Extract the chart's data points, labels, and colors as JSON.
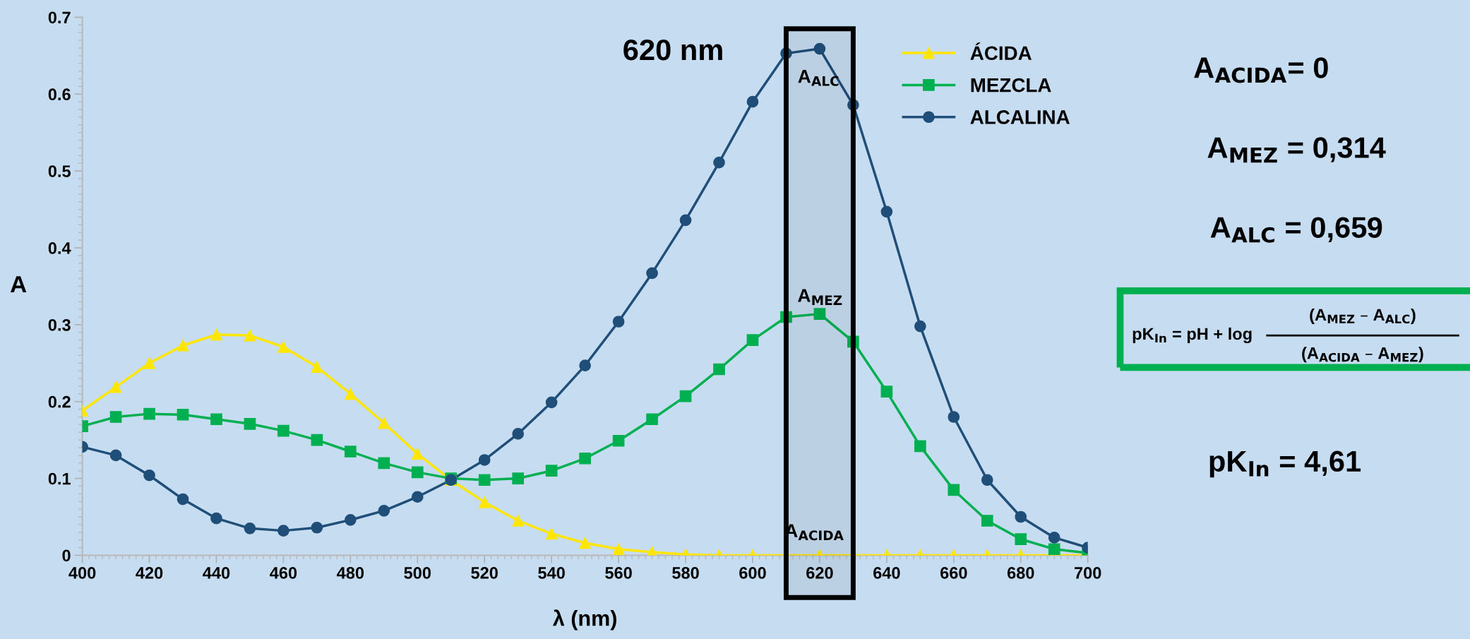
{
  "chart_data": {
    "type": "line",
    "xlabel": "λ (nm)",
    "ylabel": "A",
    "x": [
      400,
      410,
      420,
      430,
      440,
      450,
      460,
      470,
      480,
      490,
      500,
      510,
      520,
      530,
      540,
      550,
      560,
      570,
      580,
      590,
      600,
      610,
      620,
      630,
      640,
      650,
      660,
      670,
      680,
      690,
      700
    ],
    "series": [
      {
        "name": "ÁCIDA",
        "color": "#ffe600",
        "marker": "triangle",
        "values": [
          0.188,
          0.219,
          0.25,
          0.273,
          0.287,
          0.286,
          0.271,
          0.245,
          0.21,
          0.172,
          0.132,
          0.098,
          0.069,
          0.045,
          0.028,
          0.016,
          0.008,
          0.004,
          0.001,
          0,
          0,
          0,
          0,
          0,
          0,
          0,
          0,
          0,
          0,
          0,
          0
        ]
      },
      {
        "name": "MEZCLA",
        "color": "#00b050",
        "marker": "square",
        "values": [
          0.168,
          0.18,
          0.184,
          0.183,
          0.177,
          0.171,
          0.162,
          0.15,
          0.135,
          0.12,
          0.108,
          0.1,
          0.098,
          0.1,
          0.11,
          0.126,
          0.149,
          0.177,
          0.207,
          0.242,
          0.28,
          0.31,
          0.314,
          0.278,
          0.213,
          0.142,
          0.085,
          0.045,
          0.021,
          0.008,
          0.003
        ]
      },
      {
        "name": "ALCALINA",
        "color": "#1f4e79",
        "marker": "circle",
        "values": [
          0.141,
          0.13,
          0.104,
          0.073,
          0.048,
          0.035,
          0.032,
          0.036,
          0.046,
          0.058,
          0.076,
          0.098,
          0.124,
          0.158,
          0.199,
          0.247,
          0.304,
          0.367,
          0.436,
          0.511,
          0.59,
          0.653,
          0.659,
          0.586,
          0.447,
          0.298,
          0.18,
          0.098,
          0.05,
          0.023,
          0.01
        ]
      }
    ],
    "xlim": [
      400,
      700
    ],
    "ylim": [
      0,
      0.7
    ],
    "xticks": [
      400,
      420,
      440,
      460,
      480,
      500,
      520,
      540,
      560,
      580,
      600,
      620,
      640,
      660,
      680,
      700
    ],
    "yticks": [
      0,
      0.1,
      0.2,
      0.3,
      0.4,
      0.5,
      0.6,
      0.7
    ],
    "grid": false,
    "legend": "top right",
    "bands": [
      {
        "axis": "x",
        "from": 610,
        "to": 630,
        "color": "#000000"
      }
    ],
    "annotations": [
      "620 nm",
      "A$_{ALC}$",
      "A$_{MEZ}$",
      "A$_{ACIDA}$",
      "A$_{ACIDA}$= 0",
      "A$_{MEZ}$ = 0,314",
      "A$_{ALC}$ = 0,659",
      "pK$_{In}$ = pH + log",
      "(A$_{MEZ}$ – A$_{ALC}$)",
      "(A$_{ACIDA}$ – A$_{MEZ}$)",
      "pK$_{In}$ = 4,61"
    ]
  }
}
